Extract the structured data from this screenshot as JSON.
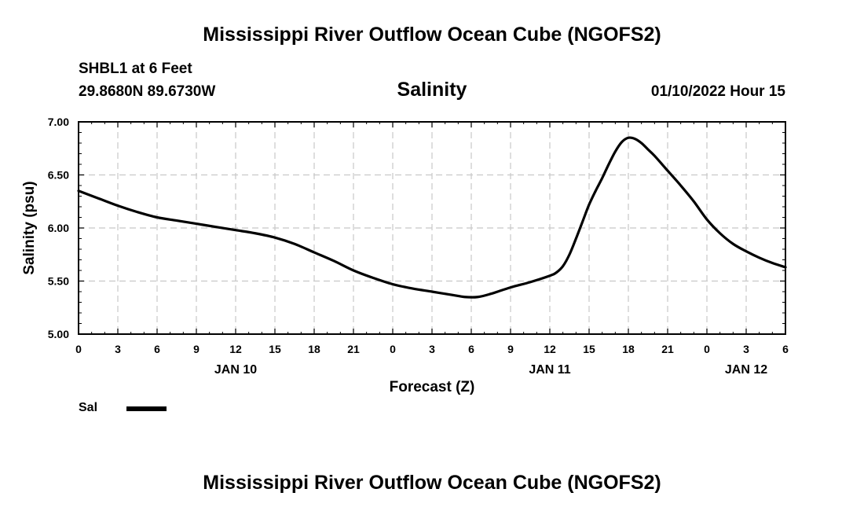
{
  "header": {
    "title": "Mississippi River Outflow Ocean Cube (NGOFS2)",
    "station": "SHBL1 at 6 Feet",
    "coords": "29.8680N  89.6730W",
    "subtitle": "Salinity",
    "datetime": "01/10/2022 Hour 15"
  },
  "footer": {
    "title": "Mississippi River Outflow Ocean Cube (NGOFS2)"
  },
  "chart_data": {
    "type": "line",
    "title": "Salinity",
    "xlabel": "Forecast (Z)",
    "ylabel": "Salinity (psu)",
    "xlim": [
      0,
      54
    ],
    "ylim": [
      5.0,
      7.0
    ],
    "grid": true,
    "x_tick_values": [
      0,
      3,
      6,
      9,
      12,
      15,
      18,
      21,
      24,
      27,
      30,
      33,
      36,
      39,
      42,
      45,
      48,
      51,
      54
    ],
    "x_tick_labels": [
      "0",
      "3",
      "6",
      "9",
      "12",
      "15",
      "18",
      "21",
      "0",
      "3",
      "6",
      "9",
      "12",
      "15",
      "18",
      "21",
      "0",
      "3",
      "6"
    ],
    "y_tick_values": [
      5.0,
      5.5,
      6.0,
      6.5,
      7.0
    ],
    "y_tick_labels": [
      "5.00",
      "5.50",
      "6.00",
      "6.50",
      "7.00"
    ],
    "date_labels": [
      {
        "text": "JAN 10",
        "x": 12
      },
      {
        "text": "JAN 11",
        "x": 36
      },
      {
        "text": "JAN 12",
        "x": 51
      }
    ],
    "legend": [
      {
        "name": "Sal",
        "color": "#000000"
      }
    ],
    "series": [
      {
        "name": "Sal",
        "color": "#000000",
        "x": [
          0,
          1.5,
          3,
          4.5,
          6,
          7.5,
          9,
          10.5,
          12,
          13.5,
          15,
          16.5,
          18,
          19.5,
          21,
          22.5,
          24,
          25.5,
          27,
          28.5,
          29.5,
          30.5,
          31.5,
          33,
          34.5,
          36,
          36.5,
          37,
          37.5,
          38,
          38.5,
          39,
          39.5,
          40,
          40.5,
          41,
          41.5,
          42,
          42.5,
          43,
          43.5,
          44,
          45,
          46,
          47,
          48,
          49,
          50,
          51,
          52,
          53,
          54
        ],
        "values": [
          6.35,
          6.28,
          6.21,
          6.15,
          6.1,
          6.07,
          6.04,
          6.01,
          5.98,
          5.95,
          5.91,
          5.85,
          5.77,
          5.69,
          5.6,
          5.53,
          5.47,
          5.43,
          5.4,
          5.37,
          5.35,
          5.35,
          5.38,
          5.44,
          5.49,
          5.55,
          5.58,
          5.64,
          5.75,
          5.9,
          6.06,
          6.22,
          6.35,
          6.47,
          6.6,
          6.72,
          6.81,
          6.85,
          6.84,
          6.8,
          6.74,
          6.68,
          6.54,
          6.4,
          6.25,
          6.08,
          5.95,
          5.85,
          5.78,
          5.72,
          5.67,
          5.63
        ]
      }
    ]
  }
}
